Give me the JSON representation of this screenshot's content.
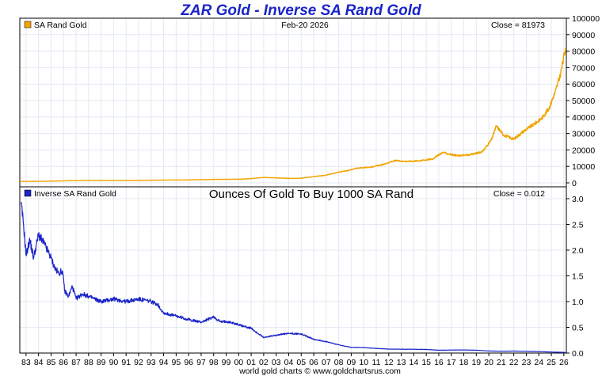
{
  "header": {
    "title": "ZAR Gold - Inverse SA Rand Gold",
    "footer": "world gold charts © www.goldchartsrus.com"
  },
  "chart_data": [
    {
      "type": "line",
      "panel": "top",
      "legend": "SA Rand Gold",
      "date_label": "Feb-20  2026",
      "close_label": "Close = 81973",
      "color": "#f2a400",
      "xlim": [
        1982.5,
        2026.2
      ],
      "ylim": [
        0,
        100000
      ],
      "y_ticks": [
        "0",
        "10000",
        "20000",
        "30000",
        "40000",
        "50000",
        "60000",
        "70000",
        "80000",
        "90000",
        "100000"
      ],
      "y_tick_values": [
        0,
        10000,
        20000,
        30000,
        40000,
        50000,
        60000,
        70000,
        80000,
        90000,
        100000
      ],
      "grid": true,
      "x": [
        1982.5,
        1984,
        1986,
        1988,
        1990,
        1992,
        1994,
        1996,
        1998,
        2000,
        2001,
        2002,
        2003,
        2004,
        2005,
        2006,
        2007,
        2008,
        2008.8,
        2009.5,
        2010.5,
        2011.5,
        2012.5,
        2013.5,
        2014.5,
        2015.5,
        2016.3,
        2016.8,
        2017.5,
        2018.5,
        2019.5,
        2020.2,
        2020.6,
        2021.2,
        2022,
        2022.8,
        2023.5,
        2024.2,
        2024.8,
        2025.3,
        2025.7,
        2026.14
      ],
      "y": [
        850,
        900,
        1200,
        1500,
        1400,
        1500,
        1700,
        1800,
        2100,
        2200,
        2600,
        3300,
        3000,
        2700,
        2800,
        3800,
        4700,
        6500,
        7500,
        9000,
        9500,
        11000,
        13500,
        13000,
        13500,
        14500,
        18500,
        17500,
        16500,
        17000,
        19000,
        26000,
        34500,
        29000,
        26500,
        31500,
        35000,
        39000,
        45000,
        55000,
        65000,
        81973
      ]
    },
    {
      "type": "line",
      "panel": "bottom",
      "legend": "Inverse SA Rand Gold",
      "subtitle": "Ounces Of Gold To Buy 1000 SA Rand",
      "close_label": "Close = 0.012",
      "color": "#1a24c8",
      "xlim": [
        1982.5,
        2026.2
      ],
      "ylim": [
        0,
        3.2
      ],
      "y_ticks": [
        "0.0",
        "0.5",
        "1.0",
        "1.5",
        "2.0",
        "2.5",
        "3.0"
      ],
      "y_tick_values": [
        0,
        0.5,
        1.0,
        1.5,
        2.0,
        2.5,
        3.0
      ],
      "grid": true,
      "x": [
        1982.6,
        1982.8,
        1983,
        1983.3,
        1983.6,
        1984,
        1984.5,
        1985,
        1985.3,
        1985.6,
        1985.9,
        1986.1,
        1986.4,
        1986.7,
        1987,
        1987.5,
        1988,
        1989,
        1990,
        1991,
        1992,
        1993,
        1993.5,
        1994,
        1995,
        1996,
        1997,
        1998,
        1998.6,
        1999,
        2000,
        2001,
        2002,
        2003,
        2004,
        2005,
        2006,
        2007,
        2008,
        2009,
        2010,
        2011,
        2012,
        2013,
        2014,
        2015,
        2016,
        2017,
        2018,
        2019,
        2020,
        2021,
        2022,
        2023,
        2024,
        2025,
        2026.14
      ],
      "y": [
        2.9,
        2.5,
        1.9,
        2.2,
        1.85,
        2.3,
        2.1,
        1.85,
        1.65,
        1.55,
        1.6,
        1.2,
        1.1,
        1.3,
        1.05,
        1.15,
        1.1,
        1.0,
        1.05,
        1.0,
        1.05,
        1.0,
        0.95,
        0.78,
        0.72,
        0.65,
        0.6,
        0.7,
        0.6,
        0.62,
        0.55,
        0.48,
        0.3,
        0.35,
        0.38,
        0.37,
        0.27,
        0.22,
        0.16,
        0.11,
        0.105,
        0.09,
        0.075,
        0.075,
        0.073,
        0.07,
        0.055,
        0.058,
        0.06,
        0.055,
        0.04,
        0.035,
        0.038,
        0.033,
        0.028,
        0.02,
        0.012
      ]
    }
  ],
  "x_axis": {
    "ticks": [
      "83",
      "84",
      "85",
      "86",
      "87",
      "88",
      "89",
      "90",
      "91",
      "92",
      "93",
      "94",
      "95",
      "96",
      "97",
      "98",
      "99",
      "00",
      "01",
      "02",
      "03",
      "04",
      "05",
      "06",
      "07",
      "08",
      "09",
      "10",
      "11",
      "12",
      "13",
      "14",
      "15",
      "16",
      "17",
      "18",
      "19",
      "20",
      "21",
      "22",
      "23",
      "24",
      "25",
      "26"
    ],
    "tick_values": [
      1983,
      1984,
      1985,
      1986,
      1987,
      1988,
      1989,
      1990,
      1991,
      1992,
      1993,
      1994,
      1995,
      1996,
      1997,
      1998,
      1999,
      2000,
      2001,
      2002,
      2003,
      2004,
      2005,
      2006,
      2007,
      2008,
      2009,
      2010,
      2011,
      2012,
      2013,
      2014,
      2015,
      2016,
      2017,
      2018,
      2019,
      2020,
      2021,
      2022,
      2023,
      2024,
      2025,
      2026
    ]
  },
  "colors": {
    "grid": "#e4e8f2",
    "frame": "#000000"
  }
}
